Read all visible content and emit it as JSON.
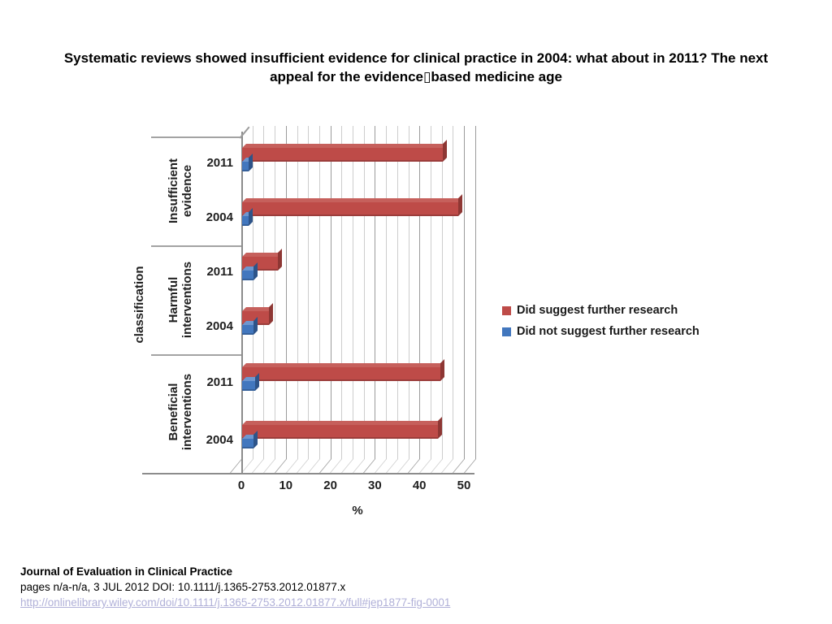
{
  "slide": {
    "title": "Systematic reviews showed insufficient evidence for clinical practice in 2004: what about in 2011? The next appeal for the evidence▯based medicine age",
    "background": "#ffffff"
  },
  "chart_data": {
    "type": "bar",
    "orientation": "horizontal",
    "style": "3d",
    "title": "",
    "category_axis_title": "classification",
    "value_axis_title": "%",
    "categories": [
      "Insufficient evidence",
      "Harmful interventions",
      "Beneficial interventions"
    ],
    "subcategories": [
      "2011",
      "2004"
    ],
    "series": [
      {
        "name": "Did suggest further research",
        "color": "#BE4B48",
        "color_top": "#C6605C",
        "color_side": "#8E3734",
        "values": [
          [
            45,
            48.5
          ],
          [
            8,
            6
          ],
          [
            44.5,
            44
          ]
        ]
      },
      {
        "name": "Did not suggest further research",
        "color": "#4277BE",
        "color_top": "#6E97CF",
        "color_side": "#2E5489",
        "values": [
          [
            1.5,
            1.5
          ],
          [
            2.5,
            2.5
          ],
          [
            3,
            2.5
          ]
        ]
      }
    ],
    "value_ticks": [
      0,
      10,
      20,
      30,
      40,
      50
    ],
    "minor_gridline_step": 2.5,
    "value_axis_max": 52.5,
    "gridlines": "on",
    "legend_position": "right",
    "gridline_minor_color": "#cdcdcd",
    "gridline_major_color": "#9b9b9b"
  },
  "footer": {
    "journal": "Journal of Evaluation in Clinical Practice",
    "citation": "pages n/a-n/a, 3 JUL 2012 DOI: 10.1111/j.1365-2753.2012.01877.x",
    "link": "http://onlinelibrary.wiley.com/doi/10.1111/j.1365-2753.2012.01877.x/full#jep1877-fig-0001",
    "link_color": "#b0b0d8"
  }
}
